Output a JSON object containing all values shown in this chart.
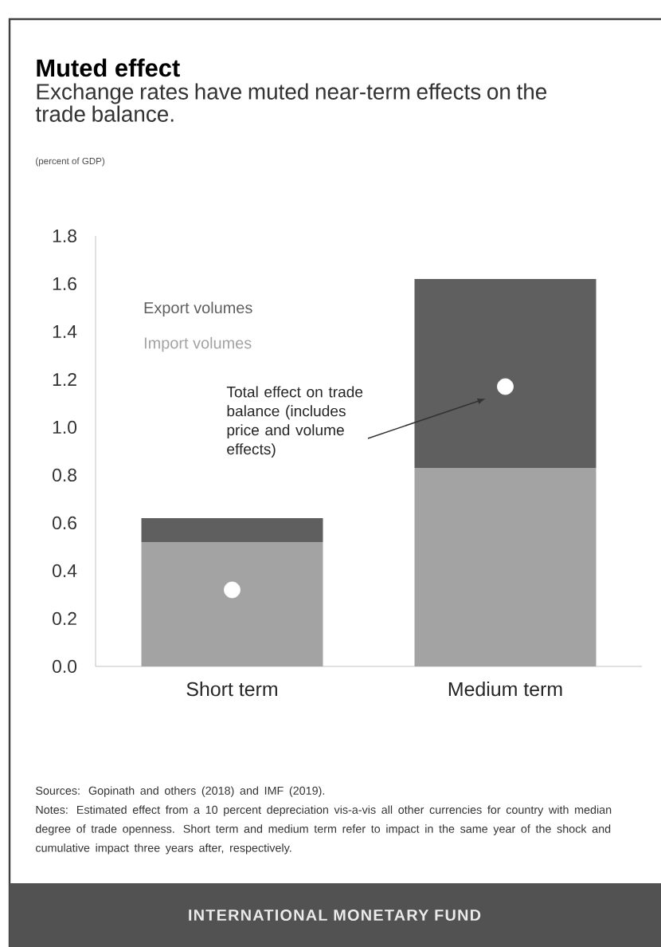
{
  "chart_data": {
    "type": "bar",
    "title": "Muted effect",
    "subtitle": "Exchange rates have muted near-term effects on the trade balance.",
    "categories": [
      "Short term",
      "Medium term"
    ],
    "stacked": true,
    "series": [
      {
        "name": "Import volumes",
        "color": "#a3a3a3",
        "values": [
          0.52,
          0.83
        ]
      },
      {
        "name": "Export volumes",
        "color": "#5f5f5f",
        "values": [
          0.1,
          0.79
        ]
      },
      {
        "type": "scatter",
        "color": "#ffffff",
        "values": [
          0.32,
          1.17
        ]
      }
    ],
    "ylim": [
      0,
      1.8
    ],
    "yticks": [
      {
        "value": 0,
        "label": "0.0"
      },
      {
        "value": 0.2,
        "label": "0.2"
      },
      {
        "value": 0.4,
        "label": "0.4"
      },
      {
        "value": 0.6,
        "label": "0.6"
      },
      {
        "value": 0.8,
        "label": "0.8"
      },
      {
        "value": 1.0,
        "label": "1.0"
      },
      {
        "value": 1.2,
        "label": "1.2"
      },
      {
        "value": 1.4,
        "label": "1.4"
      },
      {
        "value": 1.6,
        "label": "1.6"
      },
      {
        "value": 1.8,
        "label": "1.8"
      }
    ],
    "legend": "top left",
    "marker": "circle",
    "grid": false,
    "annotations": [
      "(percent of GDP)",
      "Total effect on trade balance (includes price and volume effects)",
      "Sources: Gopinath and others (2018) and IMF (2019).",
      "Notes:  Estimated effect from a 10 percent depreciation vis-a-vis all other currencies for country with median degree of trade openness. Short term and medium term refer to impact in the same year of the shock and cumulative impact three years after, respectively.",
      "INTERNATIONAL MONETARY FUND"
    ]
  }
}
